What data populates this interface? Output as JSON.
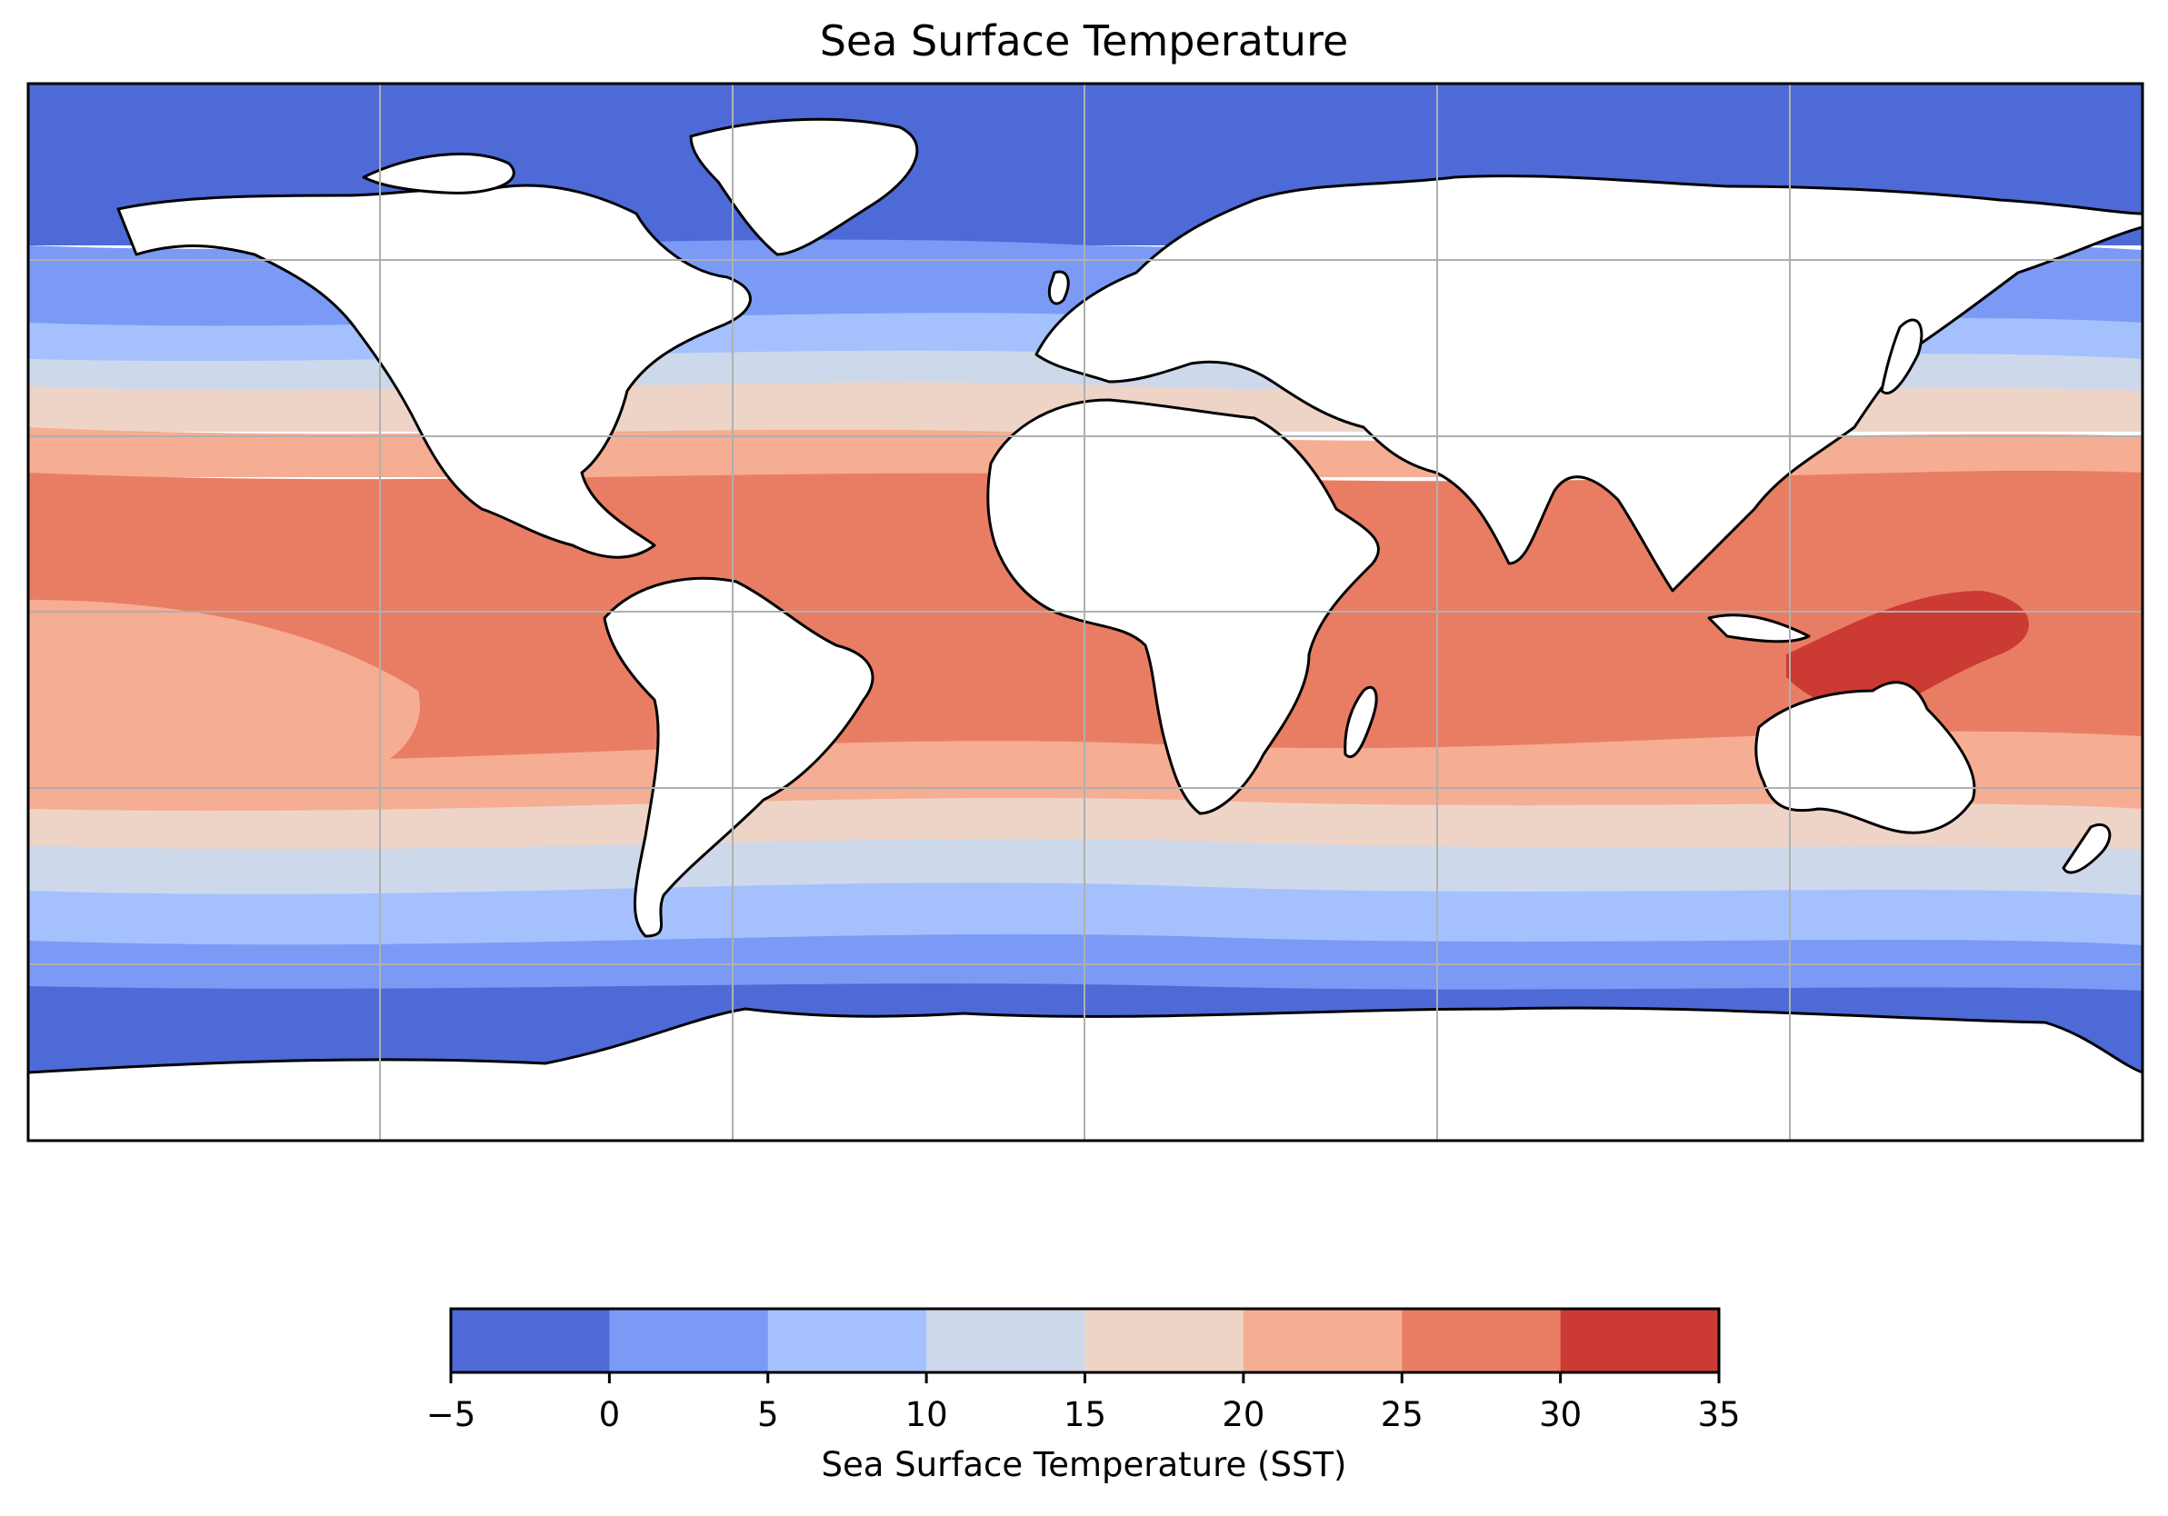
{
  "title": "Sea Surface Temperature",
  "map": {
    "projection": "PlateCarree",
    "gridlines": true,
    "coastlines": true,
    "land_color": "#ffffff",
    "grid_color": "#b0b0b0"
  },
  "colorbar": {
    "label": "Sea Surface Temperature (SST)",
    "ticks": [
      "−5",
      "0",
      "5",
      "10",
      "15",
      "20",
      "25",
      "30",
      "35"
    ],
    "bins": [
      {
        "min": -5,
        "max": 0,
        "color": "#4d6ad7"
      },
      {
        "min": 0,
        "max": 5,
        "color": "#7a9af5"
      },
      {
        "min": 5,
        "max": 10,
        "color": "#a5c1fd"
      },
      {
        "min": 10,
        "max": 15,
        "color": "#cdd8ea"
      },
      {
        "min": 15,
        "max": 20,
        "color": "#eed4c7"
      },
      {
        "min": 20,
        "max": 25,
        "color": "#f5ae93"
      },
      {
        "min": 25,
        "max": 30,
        "color": "#e97d63"
      },
      {
        "min": 30,
        "max": 35,
        "color": "#cc3a34"
      }
    ]
  }
}
